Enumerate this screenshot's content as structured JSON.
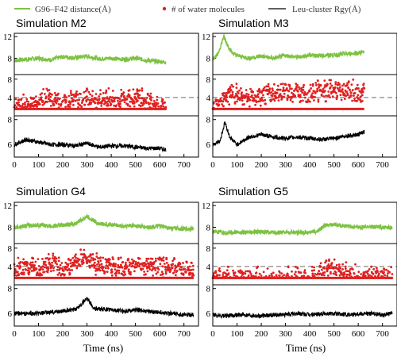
{
  "legend": {
    "items": [
      {
        "label": "G96–F42 distance(Å)",
        "color": "#7dc242",
        "marker": "line"
      },
      {
        "label": "# of water molecules",
        "color": "#e02020",
        "marker": "dot"
      },
      {
        "label": "Leu-cluster Rgy(Å)",
        "color": "#000000",
        "marker": "line"
      }
    ]
  },
  "chart_data": [
    {
      "type": "line",
      "title": "Simulation M2",
      "xlabel": "",
      "xlim": [
        0,
        760
      ],
      "xticks": [
        0,
        100,
        200,
        300,
        400,
        500,
        600,
        700
      ],
      "t_end": 625,
      "series": [
        {
          "name": "G96–F42 distance(Å)",
          "color": "#7dc242",
          "ylim": [
            5,
            12.6
          ],
          "yticks": [
            8,
            12
          ],
          "points": [
            [
              0,
              7.6
            ],
            [
              50,
              7.8
            ],
            [
              100,
              8.0
            ],
            [
              150,
              7.7
            ],
            [
              200,
              8.3
            ],
            [
              250,
              8.1
            ],
            [
              300,
              8.4
            ],
            [
              350,
              7.9
            ],
            [
              400,
              8.0
            ],
            [
              450,
              7.8
            ],
            [
              500,
              8.0
            ],
            [
              550,
              7.6
            ],
            [
              600,
              7.4
            ],
            [
              625,
              7.3
            ]
          ]
        },
        {
          "name": "# of water molecules",
          "color": "#e02020",
          "ylim": [
            0,
            9
          ],
          "yticks": [
            4,
            8
          ],
          "ref": 4,
          "points": [
            [
              0,
              2
            ],
            [
              50,
              2.5
            ],
            [
              100,
              3
            ],
            [
              150,
              3.5
            ],
            [
              200,
              3
            ],
            [
              250,
              3.5
            ],
            [
              300,
              4
            ],
            [
              350,
              3.5
            ],
            [
              400,
              4
            ],
            [
              450,
              3.5
            ],
            [
              500,
              4
            ],
            [
              550,
              3
            ],
            [
              600,
              2.5
            ],
            [
              625,
              2
            ]
          ]
        },
        {
          "name": "Leu-cluster Rgy(Å)",
          "color": "#000000",
          "ylim": [
            5,
            8.3
          ],
          "yticks": [
            6,
            8
          ],
          "points": [
            [
              0,
              6.0
            ],
            [
              50,
              6.4
            ],
            [
              100,
              6.2
            ],
            [
              150,
              6.0
            ],
            [
              200,
              6.0
            ],
            [
              250,
              5.9
            ],
            [
              300,
              6.1
            ],
            [
              350,
              5.8
            ],
            [
              400,
              5.9
            ],
            [
              450,
              5.9
            ],
            [
              500,
              5.8
            ],
            [
              550,
              5.7
            ],
            [
              600,
              5.7
            ],
            [
              625,
              5.6
            ]
          ]
        }
      ]
    },
    {
      "type": "line",
      "title": "Simulation M3",
      "xlabel": "",
      "xlim": [
        0,
        760
      ],
      "xticks": [
        0,
        100,
        200,
        300,
        400,
        500,
        600,
        700
      ],
      "t_end": 625,
      "series": [
        {
          "name": "G96–F42 distance(Å)",
          "color": "#7dc242",
          "ylim": [
            5,
            12.6
          ],
          "yticks": [
            8,
            12
          ],
          "points": [
            [
              0,
              8.0
            ],
            [
              20,
              8.6
            ],
            [
              45,
              12.0
            ],
            [
              60,
              10.5
            ],
            [
              80,
              9.0
            ],
            [
              100,
              8.5
            ],
            [
              150,
              8.0
            ],
            [
              200,
              8.4
            ],
            [
              250,
              8.0
            ],
            [
              300,
              8.5
            ],
            [
              350,
              8.2
            ],
            [
              400,
              8.6
            ],
            [
              450,
              8.5
            ],
            [
              500,
              8.6
            ],
            [
              550,
              8.8
            ],
            [
              600,
              9.0
            ],
            [
              625,
              9.1
            ]
          ]
        },
        {
          "name": "# of water molecules",
          "color": "#e02020",
          "ylim": [
            0,
            9
          ],
          "yticks": [
            4,
            8
          ],
          "ref": 4,
          "points": [
            [
              0,
              2
            ],
            [
              30,
              3
            ],
            [
              60,
              5
            ],
            [
              100,
              4
            ],
            [
              150,
              4
            ],
            [
              200,
              4.5
            ],
            [
              250,
              5
            ],
            [
              300,
              5
            ],
            [
              350,
              5
            ],
            [
              400,
              5
            ],
            [
              450,
              5.5
            ],
            [
              500,
              5.5
            ],
            [
              550,
              5.5
            ],
            [
              600,
              5
            ],
            [
              625,
              5
            ]
          ]
        },
        {
          "name": "Leu-cluster Rgy(Å)",
          "color": "#000000",
          "ylim": [
            5,
            8.3
          ],
          "yticks": [
            6,
            8
          ],
          "points": [
            [
              0,
              6.0
            ],
            [
              30,
              6.3
            ],
            [
              50,
              7.8
            ],
            [
              70,
              6.6
            ],
            [
              100,
              6.0
            ],
            [
              150,
              6.6
            ],
            [
              200,
              6.8
            ],
            [
              250,
              6.6
            ],
            [
              300,
              6.5
            ],
            [
              350,
              6.6
            ],
            [
              400,
              6.5
            ],
            [
              450,
              6.4
            ],
            [
              500,
              6.5
            ],
            [
              550,
              6.7
            ],
            [
              600,
              6.8
            ],
            [
              625,
              7.0
            ]
          ]
        }
      ]
    },
    {
      "type": "line",
      "title": "Simulation G4",
      "xlabel": "Time (ns)",
      "xlim": [
        0,
        760
      ],
      "xticks": [
        0,
        100,
        200,
        300,
        400,
        500,
        600,
        700
      ],
      "t_end": 740,
      "series": [
        {
          "name": "G96–F42 distance(Å)",
          "color": "#7dc242",
          "ylim": [
            5,
            12.6
          ],
          "yticks": [
            8,
            12
          ],
          "points": [
            [
              0,
              8.0
            ],
            [
              50,
              8.3
            ],
            [
              100,
              8.4
            ],
            [
              150,
              8.2
            ],
            [
              200,
              8.4
            ],
            [
              250,
              8.6
            ],
            [
              300,
              10.0
            ],
            [
              350,
              8.6
            ],
            [
              400,
              8.5
            ],
            [
              450,
              8.2
            ],
            [
              500,
              8.3
            ],
            [
              550,
              8.0
            ],
            [
              600,
              8.2
            ],
            [
              650,
              7.8
            ],
            [
              700,
              7.7
            ],
            [
              740,
              7.8
            ]
          ]
        },
        {
          "name": "# of water molecules",
          "color": "#e02020",
          "ylim": [
            0,
            9
          ],
          "yticks": [
            4,
            8
          ],
          "ref": 4,
          "points": [
            [
              0,
              3
            ],
            [
              50,
              4
            ],
            [
              100,
              4
            ],
            [
              150,
              4.5
            ],
            [
              200,
              4
            ],
            [
              250,
              4.5
            ],
            [
              300,
              6
            ],
            [
              350,
              4.5
            ],
            [
              400,
              4
            ],
            [
              450,
              4
            ],
            [
              500,
              4
            ],
            [
              550,
              4
            ],
            [
              600,
              3.5
            ],
            [
              650,
              3.5
            ],
            [
              700,
              3.5
            ],
            [
              740,
              3
            ]
          ]
        },
        {
          "name": "Leu-cluster Rgy(Å)",
          "color": "#000000",
          "ylim": [
            5,
            8.3
          ],
          "yticks": [
            6,
            8
          ],
          "points": [
            [
              0,
              6.0
            ],
            [
              50,
              6.0
            ],
            [
              100,
              6.0
            ],
            [
              150,
              6.1
            ],
            [
              200,
              6.2
            ],
            [
              250,
              6.3
            ],
            [
              300,
              7.2
            ],
            [
              330,
              6.4
            ],
            [
              400,
              6.3
            ],
            [
              450,
              6.2
            ],
            [
              500,
              6.3
            ],
            [
              550,
              6.2
            ],
            [
              600,
              6.1
            ],
            [
              650,
              6.0
            ],
            [
              700,
              5.9
            ],
            [
              740,
              5.9
            ]
          ]
        }
      ]
    },
    {
      "type": "line",
      "title": "Simulation G5",
      "xlabel": "Time (ns)",
      "xlim": [
        0,
        760
      ],
      "xticks": [
        0,
        100,
        200,
        300,
        400,
        500,
        600,
        700
      ],
      "t_end": 740,
      "series": [
        {
          "name": "G96–F42 distance(Å)",
          "color": "#7dc242",
          "ylim": [
            5,
            12.6
          ],
          "yticks": [
            8,
            12
          ],
          "points": [
            [
              0,
              7.2
            ],
            [
              50,
              7.0
            ],
            [
              100,
              7.1
            ],
            [
              150,
              7.0
            ],
            [
              200,
              7.2
            ],
            [
              250,
              7.0
            ],
            [
              300,
              7.1
            ],
            [
              350,
              7.0
            ],
            [
              400,
              7.1
            ],
            [
              430,
              7.2
            ],
            [
              460,
              8.3
            ],
            [
              500,
              8.5
            ],
            [
              550,
              8.2
            ],
            [
              600,
              8.0
            ],
            [
              650,
              8.1
            ],
            [
              700,
              8.0
            ],
            [
              740,
              7.9
            ]
          ]
        },
        {
          "name": "# of water molecules",
          "color": "#e02020",
          "ylim": [
            0,
            9
          ],
          "yticks": [
            4,
            8
          ],
          "ref": 4,
          "points": [
            [
              0,
              1.5
            ],
            [
              100,
              1.5
            ],
            [
              200,
              1.5
            ],
            [
              300,
              1.5
            ],
            [
              400,
              1.5
            ],
            [
              450,
              2.5
            ],
            [
              480,
              4
            ],
            [
              520,
              3.5
            ],
            [
              550,
              2.5
            ],
            [
              600,
              2
            ],
            [
              650,
              2
            ],
            [
              700,
              1.8
            ],
            [
              740,
              1.5
            ]
          ]
        },
        {
          "name": "Leu-cluster Rgy(Å)",
          "color": "#000000",
          "ylim": [
            5,
            8.3
          ],
          "yticks": [
            6,
            8
          ],
          "points": [
            [
              0,
              5.9
            ],
            [
              50,
              5.8
            ],
            [
              100,
              5.9
            ],
            [
              150,
              5.9
            ],
            [
              200,
              5.8
            ],
            [
              250,
              5.9
            ],
            [
              300,
              5.9
            ],
            [
              350,
              6.0
            ],
            [
              400,
              5.9
            ],
            [
              450,
              6.0
            ],
            [
              500,
              6.0
            ],
            [
              550,
              5.9
            ],
            [
              600,
              6.0
            ],
            [
              650,
              6.0
            ],
            [
              700,
              5.9
            ],
            [
              740,
              6.0
            ]
          ]
        }
      ]
    }
  ]
}
